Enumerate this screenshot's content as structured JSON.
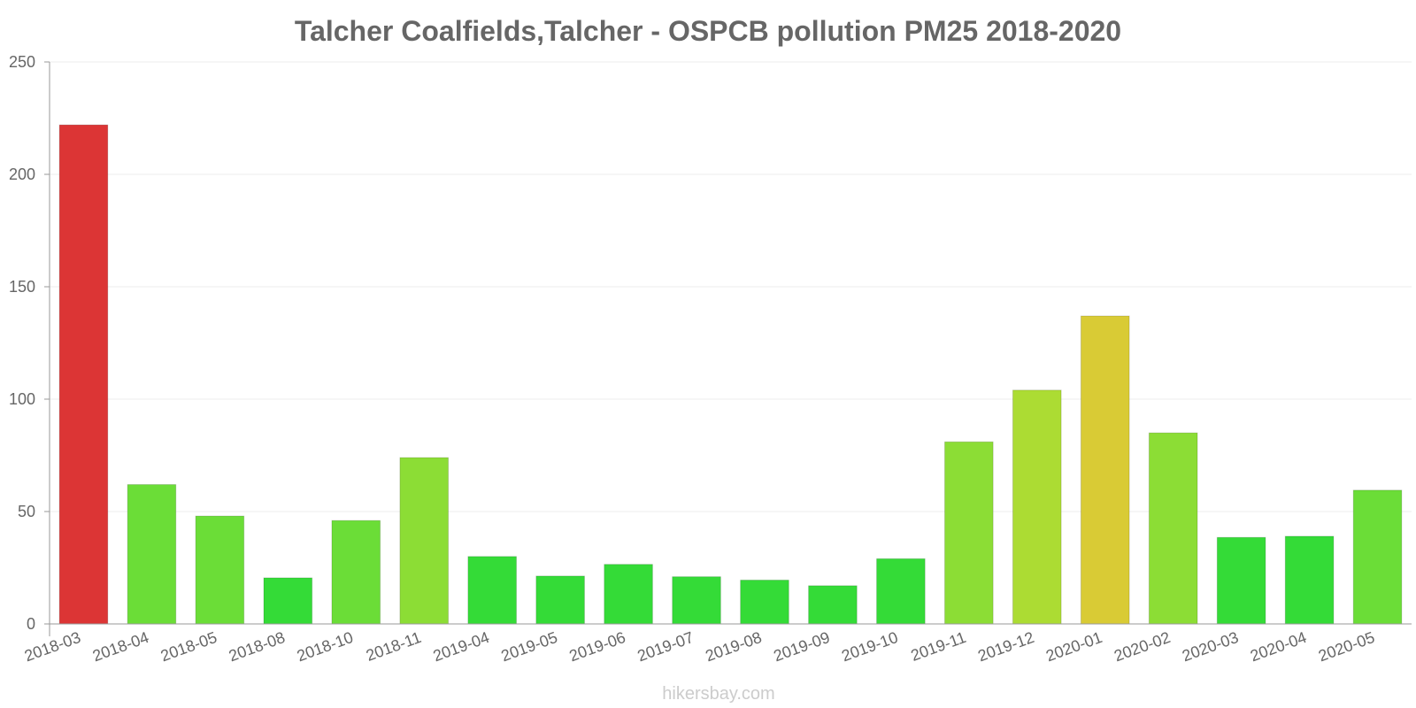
{
  "chart_data": {
    "type": "bar",
    "title": "Talcher Coalfields,Talcher - OSPCB pollution PM25 2018-2020",
    "xlabel": "",
    "ylabel": "",
    "ylim": [
      0,
      250
    ],
    "yticks": [
      "0",
      "50",
      "100",
      "150",
      "200",
      "250"
    ],
    "grid": true,
    "categories": [
      "2018-03",
      "2018-04",
      "2018-05",
      "2018-08",
      "2018-10",
      "2018-11",
      "2019-04",
      "2019-05",
      "2019-06",
      "2019-07",
      "2019-08",
      "2019-09",
      "2019-10",
      "2019-11",
      "2019-12",
      "2020-01",
      "2020-02",
      "2020-03",
      "2020-04",
      "2020-05"
    ],
    "values": [
      222,
      62,
      48,
      20.5,
      46,
      74,
      30,
      21.3,
      26.5,
      21,
      19.5,
      17,
      29,
      81,
      104,
      137,
      85,
      38.5,
      39,
      59.5
    ],
    "colors": [
      "#dc3535",
      "#6bdd37",
      "#6bdd37",
      "#34db37",
      "#6bdd37",
      "#8cdd35",
      "#34db37",
      "#34db37",
      "#34db37",
      "#34db37",
      "#34db37",
      "#34db37",
      "#34db37",
      "#8cdd35",
      "#acdc33",
      "#d9cb35",
      "#8cdd35",
      "#34db37",
      "#34db37",
      "#6bdd37"
    ]
  },
  "footer": {
    "credit": "hikersbay.com"
  }
}
